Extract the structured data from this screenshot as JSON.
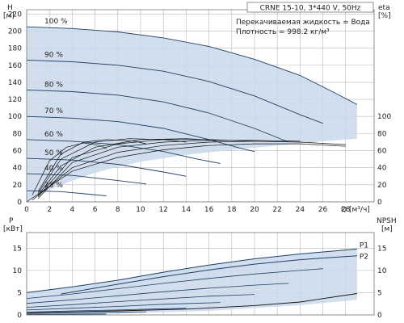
{
  "header": {
    "model": "CRNE 15-10, 3*440 V, 50Hz",
    "liquid": "Перекачиваемая жидкость = Вода",
    "density": "Плотность = 998.2 кг/м³"
  },
  "colors": {
    "envelope_fill": "#c8d8ea",
    "curve": "#1f3f66",
    "axis": "#777777",
    "grid": "#b8b8b8"
  },
  "chart_data": [
    {
      "type": "line",
      "name": "head",
      "ylabel_left": "H",
      "yunit_left": "[м]",
      "ylabel_right": "eta",
      "yunit_right": "[%]",
      "xlabel": "Q",
      "xunit": "[м³/ч]",
      "xlim": [
        0,
        30.5
      ],
      "ylim": [
        0,
        225
      ],
      "xticks": [
        0,
        2,
        4,
        6,
        8,
        10,
        12,
        14,
        16,
        18,
        20,
        22,
        24,
        26,
        28
      ],
      "yticks_left": [
        0,
        20,
        40,
        60,
        80,
        100,
        120,
        140,
        160,
        180,
        200,
        220
      ],
      "yticks_right": [
        0,
        20,
        40,
        60,
        80,
        100
      ],
      "grid": true,
      "envelope": {
        "upper": [
          [
            0,
            205
          ],
          [
            4,
            203
          ],
          [
            8,
            199
          ],
          [
            12,
            192
          ],
          [
            16,
            182
          ],
          [
            20,
            167
          ],
          [
            24,
            148
          ],
          [
            27,
            128
          ],
          [
            29,
            114
          ]
        ],
        "lower": [
          [
            0,
            0
          ],
          [
            2,
            14
          ],
          [
            4,
            25
          ],
          [
            6,
            34
          ],
          [
            8,
            41
          ],
          [
            10,
            47
          ],
          [
            14,
            55
          ],
          [
            18,
            61
          ],
          [
            22,
            66
          ],
          [
            26,
            71
          ],
          [
            29,
            74
          ]
        ]
      },
      "speed_curves": [
        {
          "label": "100 %",
          "points": [
            [
              0,
              205
            ],
            [
              4,
              203
            ],
            [
              8,
              199
            ],
            [
              12,
              192
            ],
            [
              16,
              182
            ],
            [
              20,
              167
            ],
            [
              24,
              148
            ],
            [
              27,
              128
            ],
            [
              29,
              114
            ]
          ]
        },
        {
          "label": "90 %",
          "points": [
            [
              0,
              166
            ],
            [
              4,
              164
            ],
            [
              8,
              160
            ],
            [
              12,
              153
            ],
            [
              16,
              141
            ],
            [
              20,
              124
            ],
            [
              24,
              102
            ],
            [
              26,
              92
            ]
          ]
        },
        {
          "label": "80 %",
          "points": [
            [
              0,
              131
            ],
            [
              4,
              129
            ],
            [
              8,
              125
            ],
            [
              12,
              117
            ],
            [
              16,
              104
            ],
            [
              20,
              86
            ],
            [
              23,
              70
            ]
          ]
        },
        {
          "label": "70 %",
          "points": [
            [
              0,
              100
            ],
            [
              4,
              98
            ],
            [
              8,
              94
            ],
            [
              12,
              86
            ],
            [
              16,
              73
            ],
            [
              19,
              62
            ],
            [
              20,
              59
            ]
          ]
        },
        {
          "label": "60 %",
          "points": [
            [
              0,
              73
            ],
            [
              4,
              71
            ],
            [
              8,
              67
            ],
            [
              12,
              59
            ],
            [
              15,
              50
            ],
            [
              17,
              45
            ]
          ]
        },
        {
          "label": "50 %",
          "points": [
            [
              0,
              51
            ],
            [
              4,
              49
            ],
            [
              8,
              44
            ],
            [
              12,
              35
            ],
            [
              14,
              30
            ]
          ]
        },
        {
          "label": "40 %",
          "points": [
            [
              0,
              33
            ],
            [
              4,
              31
            ],
            [
              8,
              25
            ],
            [
              10.5,
              21
            ]
          ]
        },
        {
          "label": "25 %",
          "points": [
            [
              0,
              13
            ],
            [
              3,
              12
            ],
            [
              5.5,
              9
            ],
            [
              7,
              7
            ]
          ]
        }
      ],
      "efficiency_curves": [
        [
          [
            0,
            0
          ],
          [
            4,
            36
          ],
          [
            8,
            52
          ],
          [
            12,
            61
          ],
          [
            16,
            66
          ],
          [
            20,
            68
          ],
          [
            24,
            68
          ],
          [
            28,
            65
          ]
        ],
        [
          [
            0.5,
            2
          ],
          [
            4,
            40
          ],
          [
            8,
            58
          ],
          [
            12,
            66
          ],
          [
            16,
            70
          ],
          [
            20,
            71
          ],
          [
            24,
            70
          ],
          [
            28,
            67
          ]
        ],
        [
          [
            1,
            4
          ],
          [
            4,
            46
          ],
          [
            8,
            64
          ],
          [
            12,
            70
          ],
          [
            16,
            72
          ],
          [
            20,
            72
          ],
          [
            24,
            71
          ]
        ],
        [
          [
            1,
            6
          ],
          [
            4,
            52
          ],
          [
            8,
            68
          ],
          [
            12,
            73
          ],
          [
            16,
            73
          ],
          [
            20,
            71
          ]
        ],
        [
          [
            1,
            8
          ],
          [
            3,
            42
          ],
          [
            6,
            64
          ],
          [
            10,
            73
          ],
          [
            14,
            74
          ],
          [
            17,
            72
          ]
        ],
        [
          [
            1,
            10
          ],
          [
            3,
            50
          ],
          [
            6,
            70
          ],
          [
            9,
            74
          ],
          [
            12,
            73
          ],
          [
            14,
            70
          ]
        ],
        [
          [
            1,
            12
          ],
          [
            3,
            56
          ],
          [
            5,
            70
          ],
          [
            7,
            73
          ],
          [
            9.5,
            71
          ],
          [
            10.5,
            68
          ]
        ],
        [
          [
            0.5,
            8
          ],
          [
            2,
            48
          ],
          [
            3.5,
            64
          ],
          [
            5,
            69
          ],
          [
            6.5,
            66
          ],
          [
            7,
            62
          ]
        ]
      ]
    },
    {
      "type": "line",
      "name": "power-npsh",
      "ylabel_left": "P",
      "yunit_left": "[кВт]",
      "ylabel_right": "NPSH",
      "yunit_right": "[м]",
      "xlim": [
        0,
        30.5
      ],
      "ylim": [
        0,
        18.5
      ],
      "yticks_left": [
        0,
        5,
        10,
        15
      ],
      "yticks_right": [
        0,
        5,
        10,
        15
      ],
      "grid": true,
      "labels": [
        "P1",
        "P2"
      ],
      "envelope": {
        "upper": [
          [
            0,
            5
          ],
          [
            4,
            6.3
          ],
          [
            8,
            7.8
          ],
          [
            12,
            9.6
          ],
          [
            16,
            11.2
          ],
          [
            20,
            12.6
          ],
          [
            24,
            13.7
          ],
          [
            29,
            14.8
          ]
        ],
        "lower": [
          [
            0,
            0
          ],
          [
            8,
            0.3
          ],
          [
            16,
            0.9
          ],
          [
            24,
            2.2
          ],
          [
            29,
            3.4
          ]
        ]
      },
      "p1_curve": [
        [
          0,
          5
        ],
        [
          4,
          6.3
        ],
        [
          8,
          7.8
        ],
        [
          12,
          9.6
        ],
        [
          16,
          11.2
        ],
        [
          20,
          12.6
        ],
        [
          24,
          13.7
        ],
        [
          29,
          14.8
        ]
      ],
      "p2_curve": [
        [
          3,
          4.7
        ],
        [
          8,
          6.9
        ],
        [
          12,
          8.6
        ],
        [
          16,
          10.1
        ],
        [
          20,
          11.4
        ],
        [
          24,
          12.4
        ],
        [
          29,
          13.3
        ]
      ],
      "speed_power_curves": [
        [
          [
            0,
            3.7
          ],
          [
            4,
            4.7
          ],
          [
            8,
            5.9
          ],
          [
            12,
            7.1
          ],
          [
            16,
            8.2
          ],
          [
            20,
            9.2
          ],
          [
            24,
            10
          ],
          [
            26,
            10.4
          ]
        ],
        [
          [
            0,
            2.6
          ],
          [
            4,
            3.4
          ],
          [
            8,
            4.3
          ],
          [
            12,
            5.2
          ],
          [
            16,
            6
          ],
          [
            20,
            6.7
          ],
          [
            23,
            7.1
          ]
        ],
        [
          [
            0,
            1.7
          ],
          [
            4,
            2.3
          ],
          [
            8,
            3
          ],
          [
            12,
            3.6
          ],
          [
            16,
            4.2
          ],
          [
            20,
            4.6
          ]
        ],
        [
          [
            0,
            1.1
          ],
          [
            4,
            1.5
          ],
          [
            8,
            1.9
          ],
          [
            12,
            2.4
          ],
          [
            16,
            2.7
          ],
          [
            17,
            2.8
          ]
        ],
        [
          [
            0,
            0.6
          ],
          [
            4,
            0.9
          ],
          [
            8,
            1.1
          ],
          [
            12,
            1.4
          ],
          [
            14,
            1.5
          ]
        ],
        [
          [
            0,
            0.3
          ],
          [
            4,
            0.45
          ],
          [
            8,
            0.6
          ],
          [
            10.5,
            0.7
          ]
        ],
        [
          [
            0,
            0.1
          ],
          [
            3,
            0.15
          ],
          [
            7,
            0.2
          ]
        ]
      ],
      "npsh_curve": [
        [
          0,
          0.5
        ],
        [
          8,
          0.9
        ],
        [
          14,
          1.3
        ],
        [
          20,
          2.1
        ],
        [
          24,
          2.9
        ],
        [
          29,
          4.8
        ]
      ]
    }
  ]
}
